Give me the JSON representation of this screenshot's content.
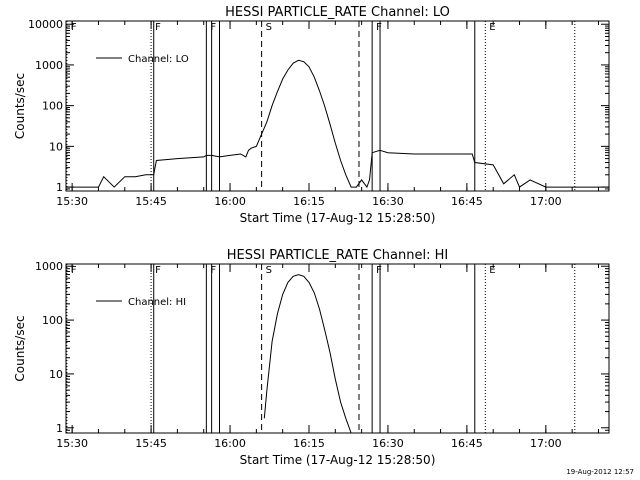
{
  "footer_stamp": "19-Aug-2012 12:57",
  "chart_data": [
    {
      "type": "line",
      "title": "HESSI PARTICLE_RATE Channel: LO",
      "xlabel": "Start Time (17-Aug-12 15:28:50)",
      "ylabel": "Counts/sec",
      "y_scale": "log",
      "xlim": [
        "15:28:50",
        "17:12:00"
      ],
      "ylim": [
        0.8,
        12000
      ],
      "x_tick_labels": [
        "15:30",
        "15:45",
        "16:00",
        "16:15",
        "16:30",
        "16:45",
        "17:00"
      ],
      "y_tick_labels": [
        "1",
        "10",
        "100",
        "1000",
        "10000"
      ],
      "legend": {
        "placement": "top-left",
        "entries": [
          "Channel: LO"
        ]
      },
      "grid": false,
      "markers": [
        {
          "label": "F",
          "time": "15:29:00",
          "style": "dotted"
        },
        {
          "label": "F",
          "time": "15:45:00",
          "style": "dotted"
        },
        {
          "label": "",
          "time": "15:45:30",
          "style": "solid"
        },
        {
          "label": "F",
          "time": "15:55:30",
          "style": "solid"
        },
        {
          "label": "",
          "time": "15:56:30",
          "style": "solid"
        },
        {
          "label": "",
          "time": "15:58:00",
          "style": "solid"
        },
        {
          "label": "S",
          "time": "16:06:00",
          "style": "dashed"
        },
        {
          "label": "",
          "time": "16:24:30",
          "style": "dashed"
        },
        {
          "label": "F",
          "time": "16:27:00",
          "style": "solid"
        },
        {
          "label": "",
          "time": "16:28:30",
          "style": "solid"
        },
        {
          "label": "",
          "time": "16:46:30",
          "style": "solid"
        },
        {
          "label": "E",
          "time": "16:48:30",
          "style": "dotted"
        },
        {
          "label": "",
          "time": "17:05:30",
          "style": "dotted"
        }
      ],
      "series": [
        {
          "name": "Channel: LO",
          "x": [
            "15:29:00",
            "15:35:00",
            "15:36:00",
            "15:38:00",
            "15:40:00",
            "15:42:00",
            "15:44:00",
            "15:45:00",
            "15:45:30",
            "15:46:00",
            "15:50:00",
            "15:55:00",
            "15:55:30",
            "15:56:30",
            "15:58:00",
            "16:00:00",
            "16:02:00",
            "16:03:00",
            "16:03:30",
            "16:04:00",
            "16:05:00",
            "16:06:00",
            "16:07:00",
            "16:08:00",
            "16:09:00",
            "16:10:00",
            "16:11:00",
            "16:12:00",
            "16:13:00",
            "16:14:00",
            "16:15:00",
            "16:16:00",
            "16:17:00",
            "16:18:00",
            "16:19:00",
            "16:20:00",
            "16:21:00",
            "16:22:00",
            "16:23:00",
            "16:24:00",
            "16:25:00",
            "16:26:00",
            "16:26:30",
            "16:27:00",
            "16:28:30",
            "16:30:00",
            "16:35:00",
            "16:40:00",
            "16:45:00",
            "16:46:00",
            "16:46:30",
            "16:50:00",
            "16:52:00",
            "16:54:00",
            "16:55:00",
            "16:57:00",
            "17:00:00",
            "17:12:00"
          ],
          "y": [
            1,
            1,
            1.8,
            1,
            1.8,
            1.8,
            2,
            2,
            2,
            4.5,
            5,
            5.5,
            6,
            6,
            5.5,
            6,
            6.5,
            5.5,
            8,
            9,
            10,
            20,
            40,
            100,
            220,
            450,
            750,
            1100,
            1300,
            1200,
            900,
            500,
            230,
            95,
            35,
            12,
            4.5,
            2,
            1,
            1,
            1.5,
            1,
            1.5,
            7,
            8,
            7,
            6.5,
            6.5,
            6.5,
            6.5,
            4,
            3.5,
            1.2,
            2,
            1,
            1.5,
            1,
            1
          ]
        }
      ]
    },
    {
      "type": "line",
      "title": "HESSI PARTICLE_RATE Channel: HI",
      "xlabel": "Start Time (17-Aug-12 15:28:50)",
      "ylabel": "Counts/sec",
      "y_scale": "log",
      "xlim": [
        "15:28:50",
        "17:12:00"
      ],
      "ylim": [
        0.8,
        1100
      ],
      "x_tick_labels": [
        "15:30",
        "15:45",
        "16:00",
        "16:15",
        "16:30",
        "16:45",
        "17:00"
      ],
      "y_tick_labels": [
        "1",
        "10",
        "100",
        "1000"
      ],
      "legend": {
        "placement": "top-left",
        "entries": [
          "Channel: HI"
        ]
      },
      "grid": false,
      "markers": [
        {
          "label": "F",
          "time": "15:29:00",
          "style": "dotted"
        },
        {
          "label": "F",
          "time": "15:45:00",
          "style": "dotted"
        },
        {
          "label": "",
          "time": "15:45:30",
          "style": "solid"
        },
        {
          "label": "F",
          "time": "15:55:30",
          "style": "solid"
        },
        {
          "label": "",
          "time": "15:56:30",
          "style": "solid"
        },
        {
          "label": "",
          "time": "15:58:00",
          "style": "solid"
        },
        {
          "label": "S",
          "time": "16:06:00",
          "style": "dashed"
        },
        {
          "label": "",
          "time": "16:24:30",
          "style": "dashed"
        },
        {
          "label": "F",
          "time": "16:27:00",
          "style": "solid"
        },
        {
          "label": "",
          "time": "16:28:30",
          "style": "solid"
        },
        {
          "label": "",
          "time": "16:46:30",
          "style": "solid"
        },
        {
          "label": "E",
          "time": "16:48:30",
          "style": "dotted"
        },
        {
          "label": "",
          "time": "17:05:30",
          "style": "dotted"
        }
      ],
      "series": [
        {
          "name": "Channel: HI",
          "x": [
            "16:06:30",
            "16:07:00",
            "16:08:00",
            "16:09:00",
            "16:10:00",
            "16:11:00",
            "16:12:00",
            "16:13:00",
            "16:14:00",
            "16:15:00",
            "16:16:00",
            "16:17:00",
            "16:18:00",
            "16:19:00",
            "16:20:00",
            "16:21:00",
            "16:22:00",
            "16:23:00"
          ],
          "y": [
            1.5,
            5,
            40,
            130,
            300,
            500,
            650,
            700,
            650,
            500,
            320,
            160,
            65,
            25,
            8,
            3,
            1.5,
            0.8
          ]
        }
      ]
    }
  ]
}
